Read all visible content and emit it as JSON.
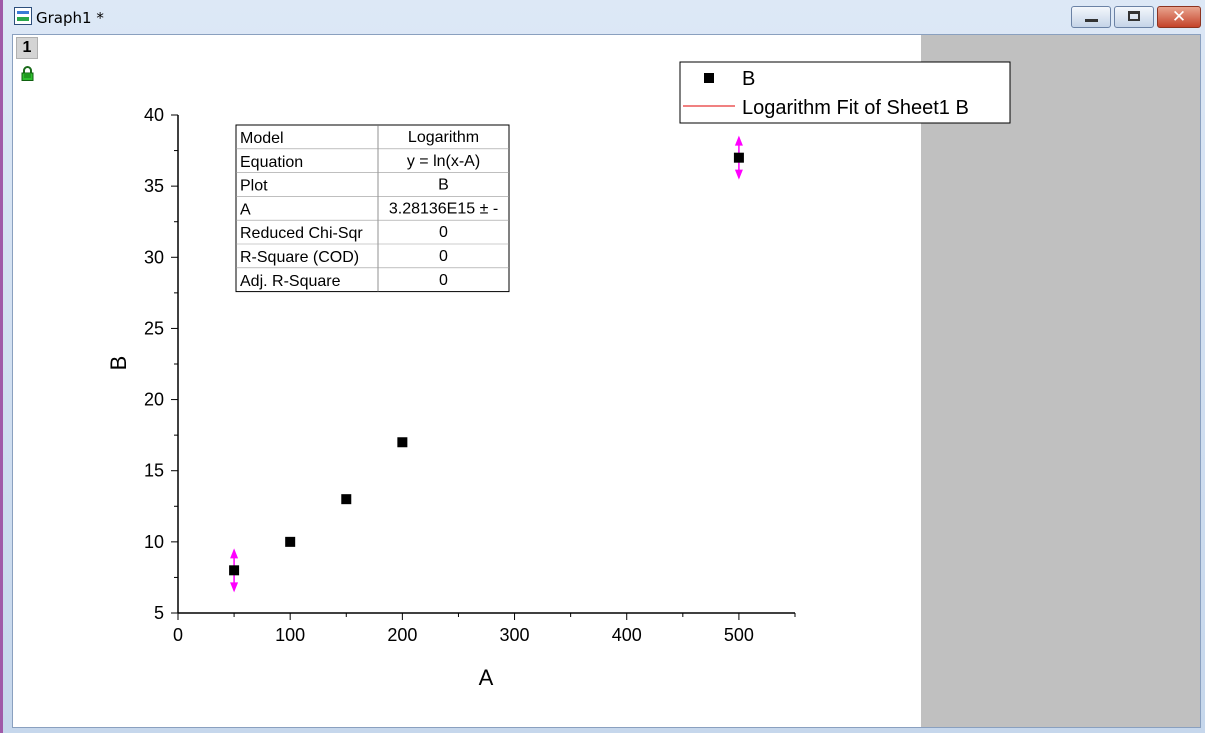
{
  "window": {
    "title": "Graph1 *",
    "close_glyph": "✕"
  },
  "icons": {
    "app": "graph-window-icon",
    "lock": "lock-icon",
    "minimize": "minimize-icon",
    "maximize": "maximize-icon",
    "close": "close-icon"
  },
  "layer": {
    "label": "1"
  },
  "colors": {
    "marker": "#000000",
    "fit_line": "#e00000",
    "error_bar": "#ff00ff",
    "gray_area": "#c0c0c0"
  },
  "fit_table": {
    "rows": [
      [
        "Model",
        "Logarithm"
      ],
      [
        "Equation",
        "y = ln(x-A)"
      ],
      [
        "Plot",
        "B"
      ],
      [
        "A",
        "3.28136E15 ± -"
      ],
      [
        "Reduced Chi-Sqr",
        "0"
      ],
      [
        "R-Square (COD)",
        "0"
      ],
      [
        "Adj. R-Square",
        "0"
      ]
    ]
  },
  "chart_data": {
    "type": "scatter",
    "xlabel": "A",
    "ylabel": "B",
    "xlim": [
      0,
      550
    ],
    "ylim": [
      5,
      40
    ],
    "x_ticks": [
      0,
      100,
      200,
      300,
      400,
      500
    ],
    "y_ticks": [
      5,
      10,
      15,
      20,
      25,
      30,
      35,
      40
    ],
    "grid": false,
    "legend_position": "top-right",
    "series": [
      {
        "name": "B",
        "marker": "square",
        "x": [
          50,
          100,
          150,
          200,
          500
        ],
        "y": [
          8,
          10,
          13,
          17,
          37
        ]
      }
    ],
    "fit": {
      "name": "Logarithm Fit of Sheet1 B"
    },
    "error_bars": [
      {
        "x": 50,
        "y": 8
      },
      {
        "x": 500,
        "y": 37
      }
    ]
  }
}
